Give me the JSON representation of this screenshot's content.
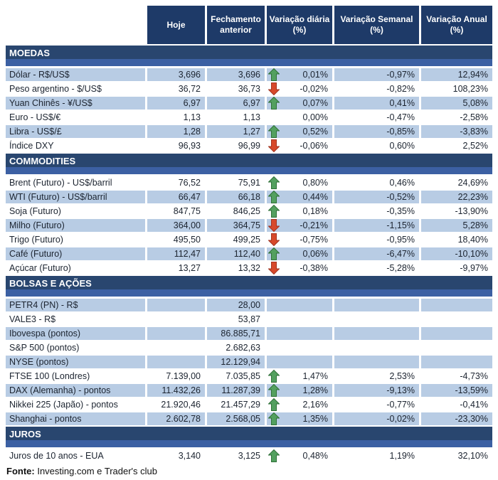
{
  "header": {
    "columns": [
      "Hoje",
      "Fechamento anterior",
      "Variação diária (%)",
      "Variação Semanal (%)",
      "Variação Anual (%)"
    ]
  },
  "sections": [
    {
      "id": "moedas",
      "label": "MOEDAS",
      "rows": [
        {
          "label": "Dólar - R$/US$",
          "hoje": "3,696",
          "fechamento": "3,696",
          "arrow": "up",
          "diaria": "0,01%",
          "semanal": "-0,97%",
          "anual": "12,94%"
        },
        {
          "label": "Peso argentino - $/US$",
          "hoje": "36,72",
          "fechamento": "36,73",
          "arrow": "down",
          "diaria": "-0,02%",
          "semanal": "-0,82%",
          "anual": "108,23%"
        },
        {
          "label": "Yuan Chinês - ¥/US$",
          "hoje": "6,97",
          "fechamento": "6,97",
          "arrow": "up",
          "diaria": "0,07%",
          "semanal": "0,41%",
          "anual": "5,08%"
        },
        {
          "label": "Euro - US$/€",
          "hoje": "1,13",
          "fechamento": "1,13",
          "arrow": null,
          "diaria": "0,00%",
          "semanal": "-0,47%",
          "anual": "-2,58%"
        },
        {
          "label": "Libra - US$/£",
          "hoje": "1,28",
          "fechamento": "1,27",
          "arrow": "up",
          "diaria": "0,52%",
          "semanal": "-0,85%",
          "anual": "-3,83%"
        },
        {
          "label": "Índice DXY",
          "hoje": "96,93",
          "fechamento": "96,99",
          "arrow": "down",
          "diaria": "-0,06%",
          "semanal": "0,60%",
          "anual": "2,52%"
        }
      ]
    },
    {
      "id": "commodities",
      "label": "COMMODITIES",
      "rows": [
        {
          "label": "Brent (Futuro) - US$/barril",
          "hoje": "76,52",
          "fechamento": "75,91",
          "arrow": "up",
          "diaria": "0,80%",
          "semanal": "0,46%",
          "anual": "24,69%"
        },
        {
          "label": "WTI (Futuro) - US$/barril",
          "hoje": "66,47",
          "fechamento": "66,18",
          "arrow": "up",
          "diaria": "0,44%",
          "semanal": "-0,52%",
          "anual": "22,23%"
        },
        {
          "label": "Soja (Futuro)",
          "hoje": "847,75",
          "fechamento": "846,25",
          "arrow": "up",
          "diaria": "0,18%",
          "semanal": "-0,35%",
          "anual": "-13,90%"
        },
        {
          "label": "Milho (Futuro)",
          "hoje": "364,00",
          "fechamento": "364,75",
          "arrow": "down",
          "diaria": "-0,21%",
          "semanal": "-1,15%",
          "anual": "5,28%"
        },
        {
          "label": "Trigo (Futuro)",
          "hoje": "495,50",
          "fechamento": "499,25",
          "arrow": "down",
          "diaria": "-0,75%",
          "semanal": "-0,95%",
          "anual": "18,40%"
        },
        {
          "label": "Café (Futuro)",
          "hoje": "112,47",
          "fechamento": "112,40",
          "arrow": "up",
          "diaria": "0,06%",
          "semanal": "-6,47%",
          "anual": "-10,10%"
        },
        {
          "label": "Açúcar (Futuro)",
          "hoje": "13,27",
          "fechamento": "13,32",
          "arrow": "down",
          "diaria": "-0,38%",
          "semanal": "-5,28%",
          "anual": "-9,97%"
        }
      ]
    },
    {
      "id": "bolsas",
      "label": "BOLSAS E AÇÕES",
      "rows": [
        {
          "label": "PETR4 (PN) - R$",
          "hoje": "",
          "fechamento": "28,00",
          "arrow": null,
          "diaria": "",
          "semanal": "",
          "anual": ""
        },
        {
          "label": "VALE3 - R$",
          "hoje": "",
          "fechamento": "53,87",
          "arrow": null,
          "diaria": "",
          "semanal": "",
          "anual": ""
        },
        {
          "label": "Ibovespa (pontos)",
          "hoje": "",
          "fechamento": "86.885,71",
          "arrow": null,
          "diaria": "",
          "semanal": "",
          "anual": ""
        },
        {
          "label": "S&P 500 (pontos)",
          "hoje": "",
          "fechamento": "2.682,63",
          "arrow": null,
          "diaria": "",
          "semanal": "",
          "anual": ""
        },
        {
          "label": "NYSE (pontos)",
          "hoje": "",
          "fechamento": "12.129,94",
          "arrow": null,
          "diaria": "",
          "semanal": "",
          "anual": ""
        },
        {
          "label": "FTSE 100 (Londres)",
          "hoje": "7.139,00",
          "fechamento": "7.035,85",
          "arrow": "up",
          "diaria": "1,47%",
          "semanal": "2,53%",
          "anual": "-4,73%"
        },
        {
          "label": "DAX (Alemanha) - pontos",
          "hoje": "11.432,26",
          "fechamento": "11.287,39",
          "arrow": "up",
          "diaria": "1,28%",
          "semanal": "-9,13%",
          "anual": "-13,59%"
        },
        {
          "label": "Nikkei 225 (Japão) - pontos",
          "hoje": "21.920,46",
          "fechamento": "21.457,29",
          "arrow": "up",
          "diaria": "2,16%",
          "semanal": "-0,77%",
          "anual": "-0,41%"
        },
        {
          "label": "Shanghai - pontos",
          "hoje": "2.602,78",
          "fechamento": "2.568,05",
          "arrow": "up",
          "diaria": "1,35%",
          "semanal": "-0,02%",
          "anual": "-23,30%"
        }
      ]
    },
    {
      "id": "juros",
      "label": "JUROS",
      "rows": [
        {
          "label": "Juros de 10 anos - EUA",
          "hoje": "3,140",
          "fechamento": "3,125",
          "arrow": "up",
          "diaria": "0,48%",
          "semanal": "1,19%",
          "anual": "32,10%"
        }
      ]
    }
  ],
  "footer": {
    "label": "Fonte:",
    "text": " Investing.com e Trader's club"
  },
  "colors": {
    "header_bg": "#1e3a68",
    "section_band_top": "#29466f",
    "section_band_bottom": "#3c60a3",
    "row_stripe": "#b8cce4",
    "arrow_up": "#53a05f",
    "arrow_down": "#d7492b",
    "header_text": "#ffffff",
    "cell_text": "#1c2430"
  }
}
